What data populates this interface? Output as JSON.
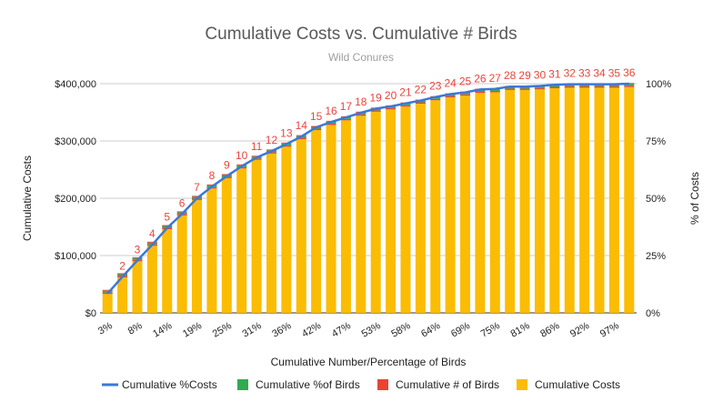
{
  "chart_data": {
    "type": "bar",
    "title": "Cumulative Costs vs. Cumulative # Birds",
    "subtitle": "Wild Conures",
    "xlabel": "Cumulative Number/Percentage of Birds",
    "ylabel": "Cumulative Costs",
    "y2label": "% of Costs",
    "ylim": [
      0,
      400000
    ],
    "y2lim": [
      0,
      1
    ],
    "yticks": [
      "$0",
      "$100,000",
      "$200,000",
      "$300,000",
      "$400,000"
    ],
    "y2ticks": [
      "0%",
      "25%",
      "50%",
      "75%",
      "100%"
    ],
    "xtick_labels": [
      "3%",
      "8%",
      "14%",
      "19%",
      "25%",
      "31%",
      "36%",
      "42%",
      "47%",
      "53%",
      "58%",
      "64%",
      "69%",
      "75%",
      "81%",
      "86%",
      "92%",
      "97%"
    ],
    "bird_labels": [
      null,
      "2",
      "3",
      "4",
      "5",
      "6",
      "7",
      "8",
      "9",
      "10",
      "11",
      "12",
      "13",
      "14",
      "15",
      "16",
      "17",
      "18",
      "19",
      "20",
      "21",
      "22",
      "23",
      "24",
      "25",
      "26",
      "27",
      "28",
      "29",
      "30",
      "31",
      "32",
      "33",
      "34",
      "35",
      "36"
    ],
    "series": [
      {
        "name": "Cumulative %Costs",
        "type": "line",
        "color": "#3b78d8"
      },
      {
        "name": "Cumulative %of Birds",
        "type": "bar",
        "color": "#34a853"
      },
      {
        "name": "Cumulative # of Birds",
        "type": "bar",
        "color": "#ea4335",
        "values": [
          1,
          2,
          3,
          4,
          5,
          6,
          7,
          8,
          9,
          10,
          11,
          12,
          13,
          14,
          15,
          16,
          17,
          18,
          19,
          20,
          21,
          22,
          23,
          24,
          25,
          26,
          27,
          28,
          29,
          30,
          31,
          32,
          33,
          34,
          35,
          36
        ]
      },
      {
        "name": "Cumulative Costs",
        "type": "bar",
        "color": "#fbbc04",
        "values": [
          33000,
          62000,
          90000,
          117000,
          146000,
          170000,
          197000,
          217000,
          235000,
          252000,
          267000,
          278000,
          290000,
          303000,
          319000,
          328000,
          336000,
          344000,
          351000,
          355000,
          360000,
          365000,
          371000,
          376000,
          379000,
          384000,
          385000,
          389000,
          389000,
          390000,
          392000,
          393000,
          393000,
          393000,
          393000,
          394000
        ]
      }
    ],
    "legend_position": "bottom",
    "grid": true
  }
}
